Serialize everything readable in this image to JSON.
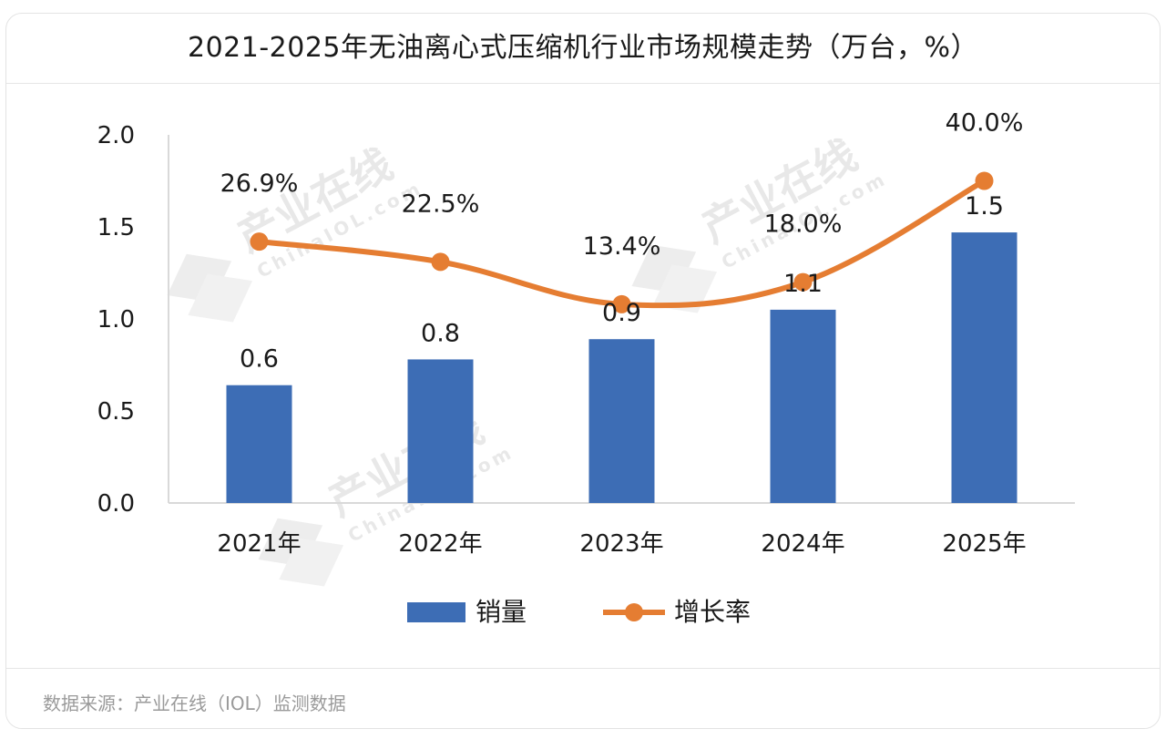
{
  "title": "2021-2025年无油离心式压缩机行业市场规模走势（万台，%）",
  "source": "数据来源：产业在线（IOL）监测数据",
  "watermark": {
    "brand": "产业在线",
    "url": "ChinaIOL.com"
  },
  "colors": {
    "bar": "#3d6db5",
    "line": "#e57d32",
    "axis": "#d9d9d9",
    "text": "#1a1a1a"
  },
  "chart_data": {
    "type": "bar",
    "title": "2021-2025年无油离心式压缩机行业市场规模走势（万台，%）",
    "categories": [
      "2021年",
      "2022年",
      "2023年",
      "2024年",
      "2025年"
    ],
    "ylim": [
      0,
      2
    ],
    "yticks": [
      "2.0",
      "1.5",
      "1.0",
      "0.5",
      "0.0"
    ],
    "ytick_values": [
      2.0,
      1.5,
      1.0,
      0.5,
      0.0
    ],
    "xlabel": "",
    "ylabel": "",
    "series": [
      {
        "name": "销量",
        "type": "bar",
        "values": [
          0.64,
          0.78,
          0.89,
          1.05,
          1.47
        ],
        "labels": [
          "0.6",
          "0.8",
          "0.9",
          "1.1",
          "1.5"
        ]
      },
      {
        "name": "增长率",
        "type": "line",
        "values": [
          26.9,
          22.5,
          13.4,
          18.0,
          40.0
        ],
        "plot_values": [
          1.42,
          1.31,
          1.08,
          1.2,
          1.75
        ],
        "labels": [
          "26.9%",
          "22.5%",
          "13.4%",
          "18.0%",
          "40.0%"
        ]
      }
    ],
    "legend": [
      "销量",
      "增长率"
    ],
    "legend_position": "bottom"
  }
}
